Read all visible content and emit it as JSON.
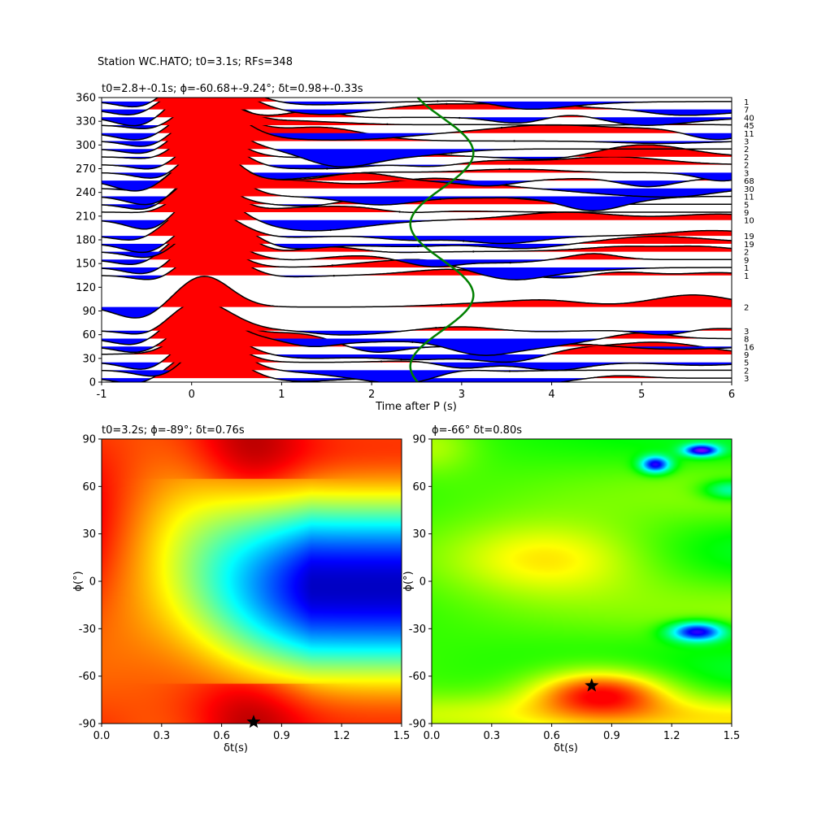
{
  "figure": {
    "suptitle": "Station WC.HATO; t0=3.1s; RFs=348"
  },
  "chart_data": [
    {
      "id": "traces",
      "type": "line",
      "title": "t0=2.8+-0.1s; ϕ=-60.68+-9.24°; δt=0.98+-0.33s",
      "xlabel": "Time after P (s)",
      "ylabel": "",
      "xlim": [
        -1,
        6
      ],
      "ylim": [
        0,
        360
      ],
      "xticks": [
        -1,
        0,
        1,
        2,
        3,
        4,
        5,
        6
      ],
      "yticks": [
        0,
        30,
        60,
        90,
        120,
        150,
        180,
        210,
        240,
        270,
        300,
        330,
        360
      ],
      "positive_fill": "#ff0000",
      "negative_fill": "#0000ff",
      "line_color": "#000000",
      "curve_color": "#008000",
      "back_azimuths": [
        5,
        15,
        25,
        35,
        45,
        55,
        65,
        95,
        135,
        145,
        155,
        165,
        175,
        185,
        205,
        215,
        225,
        235,
        245,
        255,
        265,
        275,
        285,
        295,
        305,
        315,
        325,
        335,
        345,
        355
      ],
      "counts": [
        "3",
        "2",
        "5",
        "9",
        "16",
        "8",
        "3",
        "2",
        "1",
        "1",
        "9",
        "2",
        "19",
        "19",
        "10",
        "9",
        "5",
        "11",
        "30",
        "68",
        "3",
        "2",
        "2",
        "2",
        "3",
        "11",
        "45",
        "40",
        "7",
        "1"
      ],
      "delay_curve": {
        "mean": 2.78,
        "amplitude": 0.35,
        "phase_deg": 110
      }
    },
    {
      "id": "grid-search-left",
      "type": "heatmap",
      "title": "t0=3.2s; ϕ=-89°; δt=0.76s",
      "xlabel": "δt(s)",
      "ylabel": "ϕ(°)",
      "xlim": [
        0,
        1.5
      ],
      "ylim": [
        -90,
        90
      ],
      "xticks": [
        "0.0",
        "0.3",
        "0.6",
        "0.9",
        "1.2",
        "1.5"
      ],
      "yticks": [
        -90,
        -60,
        -30,
        0,
        30,
        60,
        90
      ],
      "colormap": "jet",
      "best": {
        "dt": 0.76,
        "phi": -89
      }
    },
    {
      "id": "grid-search-right",
      "type": "heatmap",
      "title": "ϕ=-66° δt=0.80s",
      "xlabel": "δt(s)",
      "ylabel": "ϕ(°)",
      "xlim": [
        0,
        1.5
      ],
      "ylim": [
        -90,
        90
      ],
      "xticks": [
        "0.0",
        "0.3",
        "0.6",
        "0.9",
        "1.2",
        "1.5"
      ],
      "yticks": [
        -90,
        -60,
        -30,
        0,
        30,
        60,
        90
      ],
      "colormap": "hsv",
      "best": {
        "dt": 0.8,
        "phi": -66
      }
    }
  ]
}
